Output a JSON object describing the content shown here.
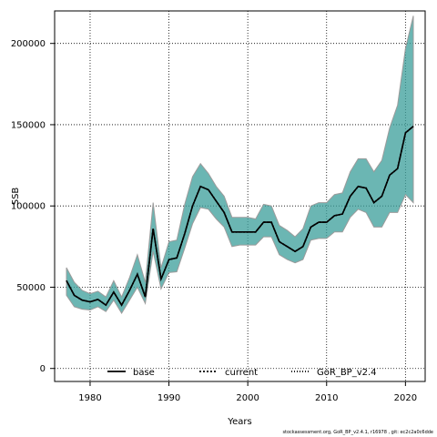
{
  "chart_data": {
    "type": "line",
    "title": "",
    "xlabel": "Years",
    "ylabel": "SSB",
    "xlim": [
      1975.5,
      2022.5
    ],
    "ylim": [
      -8000,
      220000
    ],
    "xticks": [
      1980,
      1990,
      2000,
      2010,
      2020
    ],
    "yticks": [
      0,
      50000,
      100000,
      150000,
      200000
    ],
    "grid": true,
    "legend_position": "bottom",
    "colors": {
      "band": "#3a9e9a",
      "band_outline": "#9b9b9b",
      "line": "#000000"
    },
    "x": [
      1977,
      1978,
      1979,
      1980,
      1981,
      1982,
      1983,
      1984,
      1985,
      1986,
      1987,
      1988,
      1989,
      1990,
      1991,
      1992,
      1993,
      1994,
      1995,
      1996,
      1997,
      1998,
      1999,
      2000,
      2001,
      2002,
      2003,
      2004,
      2005,
      2006,
      2007,
      2008,
      2009,
      2010,
      2011,
      2012,
      2013,
      2014,
      2015,
      2016,
      2017,
      2018,
      2019,
      2020,
      2021
    ],
    "series": [
      {
        "name": "base",
        "style": "solid",
        "values": [
          54000,
          45000,
          42000,
          41000,
          42500,
          39000,
          47000,
          39000,
          48000,
          58000,
          44000,
          86000,
          55000,
          67000,
          68000,
          83000,
          100000,
          112000,
          110000,
          103000,
          96000,
          84000,
          84000,
          84000,
          84000,
          90000,
          90000,
          78000,
          75000,
          72000,
          75000,
          87000,
          90000,
          90000,
          94000,
          95000,
          106000,
          112000,
          111000,
          102000,
          106000,
          119000,
          123000,
          145000,
          149000
        ]
      },
      {
        "name": "current",
        "style": "dotted",
        "values": [
          54000,
          45000,
          42000,
          41000,
          42500,
          39000,
          47000,
          39000,
          48000,
          58000,
          44000,
          86000,
          55000,
          67000,
          68000,
          83000,
          100000,
          112000,
          110000,
          103000,
          96000,
          84000,
          84000,
          84000,
          84000,
          90000,
          90000,
          78000,
          75000,
          72000,
          75000,
          87000,
          90000,
          90000,
          94000,
          95000,
          106000,
          112000,
          111000,
          102000,
          106000,
          119000,
          123000,
          145000,
          149000
        ]
      },
      {
        "name": "GoR_BP_v2.4",
        "style": "dotdash",
        "values": [
          54000,
          45000,
          42000,
          41000,
          42500,
          39000,
          47000,
          39000,
          48000,
          58000,
          44000,
          86000,
          55000,
          67000,
          68000,
          83000,
          100000,
          112000,
          110000,
          103000,
          96000,
          84000,
          84000,
          84000,
          84000,
          90000,
          90000,
          78000,
          75000,
          72000,
          75000,
          87000,
          90000,
          90000,
          94000,
          95000,
          106000,
          112000,
          111000,
          102000,
          106000,
          119000,
          123000,
          145000,
          149000
        ]
      }
    ],
    "interval": {
      "lower": [
        45000,
        38000,
        36500,
        36000,
        38000,
        35000,
        42000,
        34000,
        42000,
        50000,
        40000,
        72000,
        49000,
        59000,
        59500,
        74000,
        89000,
        99000,
        98000,
        92000,
        87000,
        75000,
        76000,
        76000,
        76000,
        81000,
        81000,
        70000,
        67000,
        65000,
        67000,
        79000,
        80000,
        80000,
        84000,
        84000,
        93000,
        98000,
        96000,
        87000,
        87000,
        96000,
        96000,
        107000,
        102000
      ],
      "upper": [
        62000,
        53000,
        48000,
        46000,
        47500,
        44000,
        54000,
        44000,
        56000,
        70000,
        53000,
        102000,
        62000,
        78000,
        79000,
        101000,
        118000,
        126000,
        120000,
        112000,
        106000,
        93000,
        93000,
        93000,
        92000,
        101000,
        100000,
        88000,
        85000,
        81000,
        86000,
        100000,
        102000,
        102000,
        107000,
        108000,
        121000,
        129000,
        129000,
        121000,
        128000,
        148000,
        162000,
        197000,
        217000
      ]
    }
  },
  "footer": "stockassessment.org, GoR_BP_v2.4.1, r16978 , git: ec2c2a0c6dde"
}
